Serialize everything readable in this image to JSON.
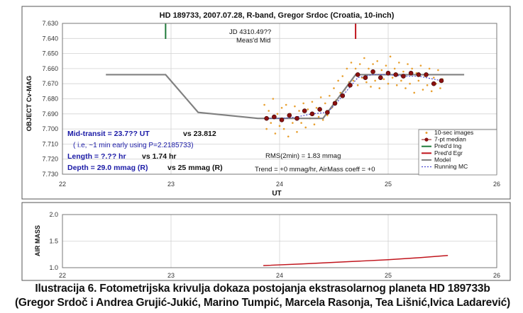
{
  "chart_data": [
    {
      "type": "scatter",
      "title": "HD 189733, 2007.07.28, R-band, Gregor Srdoc (Croatia, 10-inch)",
      "xlabel": "UT",
      "ylabel": "OBJECT Cv-MAG",
      "xlim": [
        22,
        26
      ],
      "ylim": [
        7.63,
        7.73
      ],
      "y_inverted": true,
      "x_ticks": [
        "22",
        "23",
        "24",
        "25",
        "26"
      ],
      "y_ticks": [
        "7.630",
        "7.640",
        "7.650",
        "7.660",
        "7.670",
        "7.680",
        "7.690",
        "7.700",
        "7.710",
        "7.720",
        "7.730"
      ],
      "grid": true,
      "legend_position": "bottom-right",
      "legend": [
        {
          "label": "10-sec images",
          "color": "#e8a030",
          "kind": "dot"
        },
        {
          "label": "7-pt median",
          "color": "#8b1010",
          "kind": "circle"
        },
        {
          "label": "Pred'd Ing",
          "color": "#1f7a3a",
          "kind": "line"
        },
        {
          "label": "Pred'd Egr",
          "color": "#c0141c",
          "kind": "line"
        },
        {
          "label": "Model",
          "color": "#808080",
          "kind": "line"
        },
        {
          "label": "Running MC",
          "color": "#4b4bd0",
          "kind": "dashed"
        }
      ],
      "annotations": {
        "jd_line1": "JD 4310.49??",
        "jd_line2": "Meas'd Mid",
        "midtransit_a": "Mid-transit = 23.7?? UT",
        "midtransit_b": "vs 23.812",
        "early": "( i.e, ~1 min early using P=2.2185733)",
        "length_a": "Length = ?.?? hr",
        "length_b": "vs 1.74 hr",
        "depth_a": "Depth = 29.0 mmag (R)",
        "depth_b": "vs 25 mmag (R)",
        "rms": "RMS(2min) = 1.83 mmag",
        "trend": "Trend = +0 mmag/hr, AirMass coeff = +0"
      },
      "pred_ingress_x": 22.95,
      "pred_egress_x": 24.7,
      "series": [
        {
          "name": "Model",
          "color": "#808080",
          "x": [
            22.4,
            22.95,
            23.25,
            23.8,
            24.4,
            24.7,
            25.7
          ],
          "y": [
            7.664,
            7.664,
            7.689,
            7.693,
            7.693,
            7.664,
            7.664
          ]
        },
        {
          "name": "7-pt median",
          "color": "#8b1010",
          "x": [
            23.88,
            23.95,
            24.02,
            24.09,
            24.16,
            24.23,
            24.3,
            24.37,
            24.44,
            24.51,
            24.58,
            24.65,
            24.72,
            24.79,
            24.86,
            24.93,
            25.0,
            25.07,
            25.14,
            25.21,
            25.28,
            25.35,
            25.42,
            25.49
          ],
          "y": [
            7.693,
            7.692,
            7.694,
            7.691,
            7.693,
            7.688,
            7.69,
            7.687,
            7.689,
            7.683,
            7.678,
            7.671,
            7.664,
            7.666,
            7.662,
            7.666,
            7.663,
            7.664,
            7.665,
            7.663,
            7.664,
            7.664,
            7.67,
            7.668
          ]
        },
        {
          "name": "Running MC",
          "color": "#4b4bd0",
          "x": [
            23.88,
            24.02,
            24.16,
            24.3,
            24.44,
            24.51,
            24.58,
            24.65,
            24.72,
            24.86,
            25.0,
            25.14,
            25.28,
            25.42,
            25.49
          ],
          "y": [
            7.693,
            7.693,
            7.692,
            7.69,
            7.689,
            7.684,
            7.678,
            7.672,
            7.666,
            7.664,
            7.664,
            7.665,
            7.665,
            7.667,
            7.668
          ]
        },
        {
          "name": "10-sec images",
          "color": "#e8a030",
          "x": [
            23.86,
            23.88,
            23.9,
            23.92,
            23.94,
            23.96,
            23.98,
            24.0,
            24.02,
            24.04,
            24.06,
            24.08,
            24.1,
            24.12,
            24.14,
            24.16,
            24.18,
            24.2,
            24.22,
            24.24,
            24.26,
            24.28,
            24.3,
            24.32,
            24.34,
            24.36,
            24.38,
            24.4,
            24.42,
            24.44,
            24.46,
            24.48,
            24.5,
            24.52,
            24.54,
            24.56,
            24.58,
            24.6,
            24.62,
            24.64,
            24.66,
            24.68,
            24.7,
            24.72,
            24.74,
            24.76,
            24.78,
            24.8,
            24.82,
            24.84,
            24.86,
            24.88,
            24.9,
            24.92,
            24.94,
            24.96,
            24.98,
            25.0,
            25.02,
            25.04,
            25.06,
            25.08,
            25.1,
            25.12,
            25.14,
            25.16,
            25.18,
            25.2,
            25.22,
            25.24,
            25.26,
            25.28,
            25.3,
            25.32,
            25.34,
            25.36,
            25.38,
            25.4,
            25.42,
            25.44,
            25.46,
            25.48,
            25.5
          ],
          "y": [
            7.684,
            7.7,
            7.688,
            7.696,
            7.68,
            7.703,
            7.69,
            7.698,
            7.686,
            7.7,
            7.684,
            7.705,
            7.69,
            7.696,
            7.685,
            7.702,
            7.688,
            7.696,
            7.683,
            7.699,
            7.687,
            7.693,
            7.682,
            7.697,
            7.686,
            7.692,
            7.679,
            7.694,
            7.683,
            7.691,
            7.678,
            7.686,
            7.673,
            7.681,
            7.668,
            7.676,
            7.665,
            7.674,
            7.66,
            7.669,
            7.656,
            7.668,
            7.66,
            7.671,
            7.657,
            7.666,
            7.653,
            7.669,
            7.66,
            7.672,
            7.657,
            7.668,
            7.655,
            7.673,
            7.661,
            7.667,
            7.658,
            7.67,
            7.652,
            7.666,
            7.66,
            7.671,
            7.656,
            7.668,
            7.662,
            7.673,
            7.657,
            7.67,
            7.66,
            7.676,
            7.663,
            7.668,
            7.658,
            7.674,
            7.665,
            7.671,
            7.66,
            7.675,
            7.666,
            7.67,
            7.661,
            7.673,
            7.667
          ]
        }
      ]
    },
    {
      "type": "line",
      "ylabel": "AIR MASS",
      "xlim": [
        22,
        26
      ],
      "ylim": [
        1.0,
        2.0
      ],
      "x_ticks": [
        "22",
        "23",
        "24",
        "25",
        "26"
      ],
      "y_ticks": [
        "1.0",
        "1.5",
        "2.0"
      ],
      "grid": true,
      "series": [
        {
          "name": "",
          "color": "#c0141c",
          "x": [
            23.85,
            24.2,
            24.6,
            25.0,
            25.3,
            25.55
          ],
          "y": [
            1.04,
            1.07,
            1.11,
            1.15,
            1.19,
            1.23
          ]
        }
      ]
    }
  ],
  "caption": {
    "line1": "Ilustracija 6. Fotometrijska krivulja dokaza postojanja ekstrasolarnog planeta HD 189733b",
    "line2": "(Gregor Srdoč i Andrea Grujić-Jukić, Marino Tumpić, Marcela Rasonja, Tea Lišnić,Ivica Ladarević)"
  }
}
